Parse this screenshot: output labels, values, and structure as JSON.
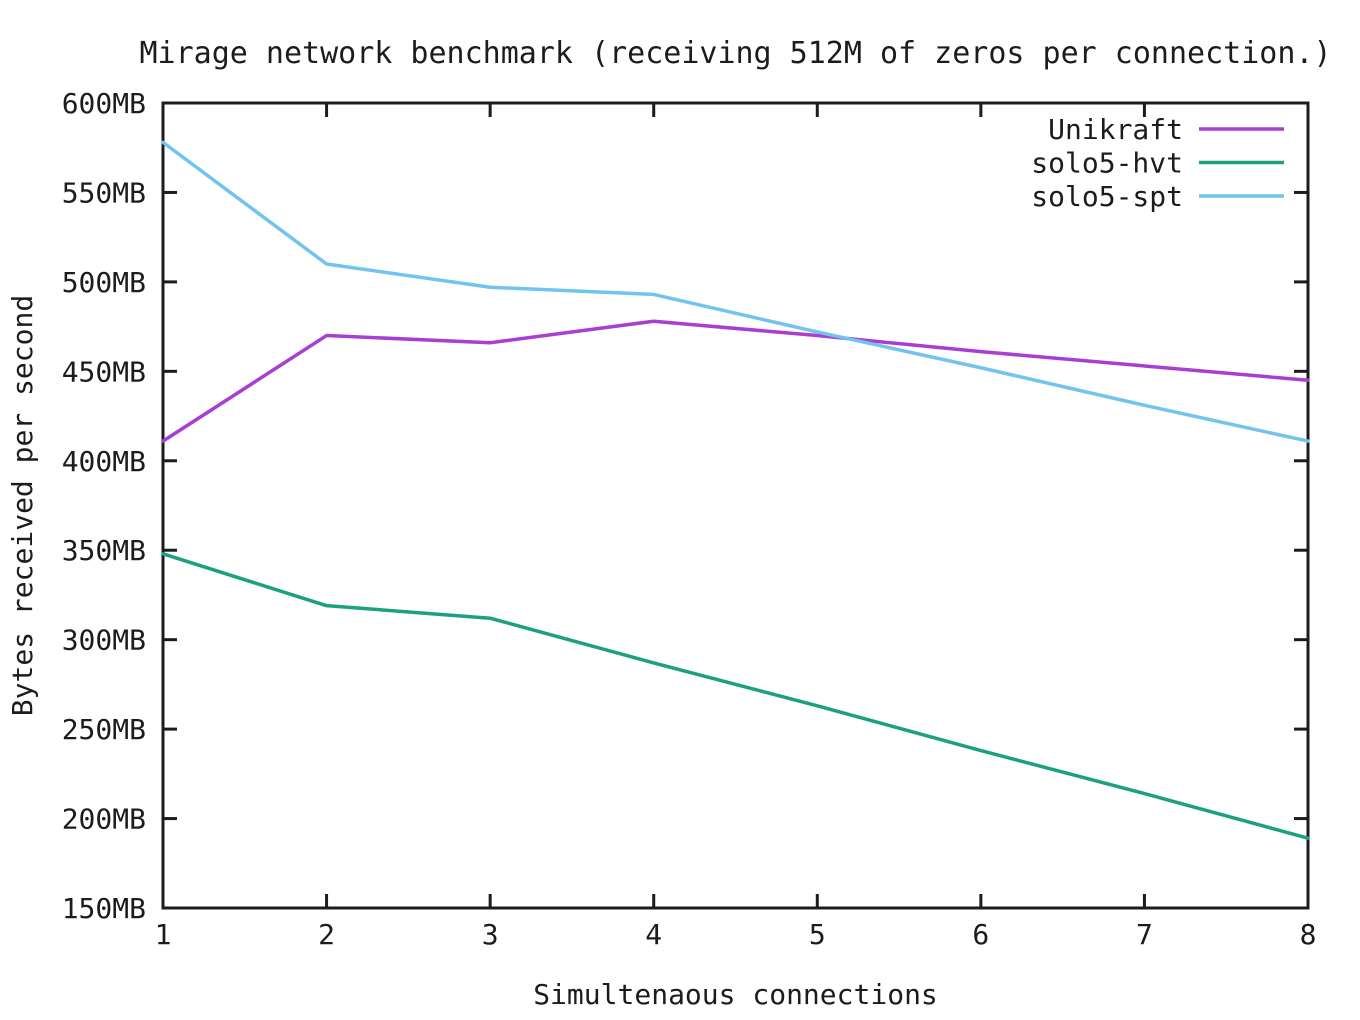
{
  "chart_data": {
    "type": "line",
    "title": "Mirage network benchmark (receiving 512M of zeros per connection.)",
    "xlabel": "Simultenaous connections",
    "ylabel": "Bytes received per second",
    "x": [
      1,
      2,
      3,
      4,
      5,
      6,
      7,
      8
    ],
    "xlim": [
      1,
      8
    ],
    "ylim": [
      150,
      600
    ],
    "xtick_labels": [
      "1",
      "2",
      "3",
      "4",
      "5",
      "6",
      "7",
      "8"
    ],
    "ytick_values": [
      150,
      200,
      250,
      300,
      350,
      400,
      450,
      500,
      550,
      600
    ],
    "ytick_labels": [
      "150MB",
      "200MB",
      "250MB",
      "300MB",
      "350MB",
      "400MB",
      "450MB",
      "500MB",
      "550MB",
      "600MB"
    ],
    "grid": false,
    "legend_position": "top-right-inside",
    "series": [
      {
        "name": "Unikraft",
        "color": "#a93ed3",
        "values": [
          411,
          470,
          466,
          478,
          470,
          461,
          453,
          445
        ]
      },
      {
        "name": "solo5-hvt",
        "color": "#1ba180",
        "values": [
          348,
          319,
          312,
          287,
          263,
          238,
          214,
          189
        ]
      },
      {
        "name": "solo5-spt",
        "color": "#72c3ed",
        "values": [
          578,
          510,
          497,
          493,
          472,
          452,
          431,
          411
        ]
      }
    ]
  },
  "style": {
    "background": "#ffffff",
    "axis_color": "#1c1c1c",
    "text_color": "#1c1c1c"
  }
}
